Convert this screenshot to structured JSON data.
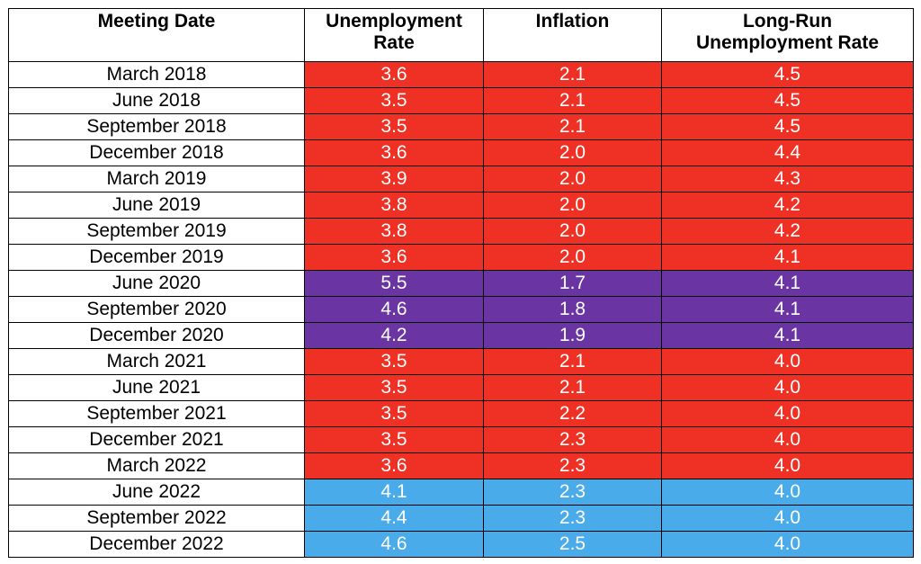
{
  "chart_data": {
    "type": "table",
    "columns": [
      [
        "Meeting Date"
      ],
      [
        "Unemployment",
        "Rate"
      ],
      [
        "Inflation"
      ],
      [
        "Long-Run",
        "Unemployment Rate"
      ]
    ],
    "colors": {
      "red": "#EE3124",
      "purple": "#6A35A2",
      "blue": "#4AABEA"
    },
    "rows": [
      {
        "date": "March 2018",
        "unemployment": "3.6",
        "inflation": "2.1",
        "long_run": "4.5",
        "color": "red"
      },
      {
        "date": "June 2018",
        "unemployment": "3.5",
        "inflation": "2.1",
        "long_run": "4.5",
        "color": "red"
      },
      {
        "date": "September 2018",
        "unemployment": "3.5",
        "inflation": "2.1",
        "long_run": "4.5",
        "color": "red"
      },
      {
        "date": "December 2018",
        "unemployment": "3.6",
        "inflation": "2.0",
        "long_run": "4.4",
        "color": "red"
      },
      {
        "date": "March 2019",
        "unemployment": "3.9",
        "inflation": "2.0",
        "long_run": "4.3",
        "color": "red"
      },
      {
        "date": "June 2019",
        "unemployment": "3.8",
        "inflation": "2.0",
        "long_run": "4.2",
        "color": "red"
      },
      {
        "date": "September 2019",
        "unemployment": "3.8",
        "inflation": "2.0",
        "long_run": "4.2",
        "color": "red"
      },
      {
        "date": "December 2019",
        "unemployment": "3.6",
        "inflation": "2.0",
        "long_run": "4.1",
        "color": "red"
      },
      {
        "date": "June 2020",
        "unemployment": "5.5",
        "inflation": "1.7",
        "long_run": "4.1",
        "color": "purple"
      },
      {
        "date": "September 2020",
        "unemployment": "4.6",
        "inflation": "1.8",
        "long_run": "4.1",
        "color": "purple"
      },
      {
        "date": "December 2020",
        "unemployment": "4.2",
        "inflation": "1.9",
        "long_run": "4.1",
        "color": "purple"
      },
      {
        "date": "March 2021",
        "unemployment": "3.5",
        "inflation": "2.1",
        "long_run": "4.0",
        "color": "red"
      },
      {
        "date": "June 2021",
        "unemployment": "3.5",
        "inflation": "2.1",
        "long_run": "4.0",
        "color": "red"
      },
      {
        "date": "September 2021",
        "unemployment": "3.5",
        "inflation": "2.2",
        "long_run": "4.0",
        "color": "red"
      },
      {
        "date": "December 2021",
        "unemployment": "3.5",
        "inflation": "2.3",
        "long_run": "4.0",
        "color": "red"
      },
      {
        "date": "March 2022",
        "unemployment": "3.6",
        "inflation": "2.3",
        "long_run": "4.0",
        "color": "red"
      },
      {
        "date": "June 2022",
        "unemployment": "4.1",
        "inflation": "2.3",
        "long_run": "4.0",
        "color": "blue"
      },
      {
        "date": "September 2022",
        "unemployment": "4.4",
        "inflation": "2.3",
        "long_run": "4.0",
        "color": "blue"
      },
      {
        "date": "December 2022",
        "unemployment": "4.6",
        "inflation": "2.5",
        "long_run": "4.0",
        "color": "blue"
      }
    ]
  }
}
